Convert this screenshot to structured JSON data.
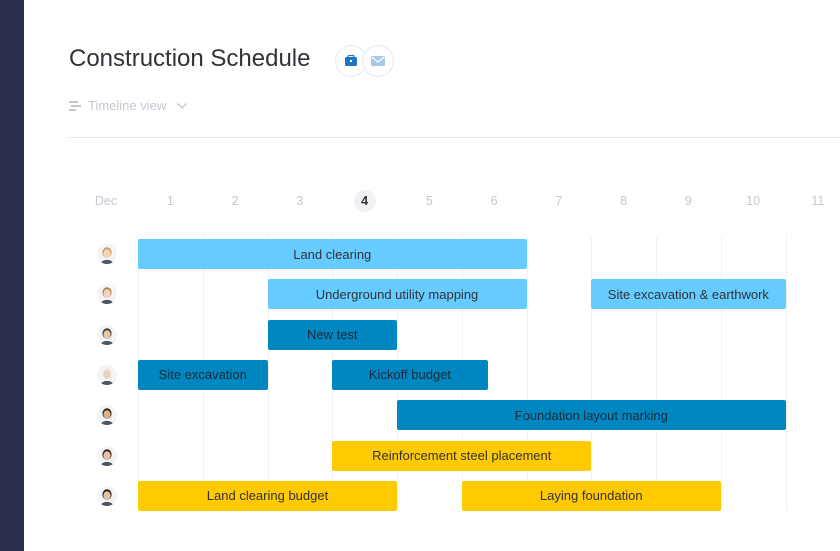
{
  "header": {
    "title": "Construction Schedule",
    "board_icon": "board-icon",
    "mail_icon": "mail-icon"
  },
  "view": {
    "label": "Timeline view",
    "icon": "timeline-icon",
    "chevron": "chevron-down-icon"
  },
  "timeline": {
    "month": "Dec",
    "today": "4",
    "days": [
      "1",
      "2",
      "3",
      "4",
      "5",
      "6",
      "7",
      "8",
      "9",
      "10",
      "11"
    ]
  },
  "rows": [
    {
      "avatar": "avatar-1",
      "bars": [
        {
          "label": "Land clearing",
          "start": 1,
          "end": 7,
          "color": "light"
        }
      ]
    },
    {
      "avatar": "avatar-2",
      "bars": [
        {
          "label": "Underground utility mapping",
          "start": 3,
          "end": 7,
          "color": "light"
        },
        {
          "label": "Site excavation & earthwork",
          "start": 8,
          "end": 11,
          "color": "light"
        }
      ]
    },
    {
      "avatar": "avatar-3",
      "bars": [
        {
          "label": "New test",
          "start": 3,
          "end": 5,
          "color": "dark"
        }
      ]
    },
    {
      "avatar": "avatar-4",
      "bars": [
        {
          "label": "Site excavation",
          "start": 1,
          "end": 3,
          "color": "dark"
        },
        {
          "label": "Kickoff budget",
          "start": 4,
          "end": 6.4,
          "color": "dark"
        }
      ]
    },
    {
      "avatar": "avatar-5",
      "bars": [
        {
          "label": "Foundation layout marking",
          "start": 5,
          "end": 11,
          "color": "dark"
        }
      ]
    },
    {
      "avatar": "avatar-6",
      "bars": [
        {
          "label": "Reinforcement steel placement",
          "start": 4,
          "end": 8,
          "color": "yellow"
        }
      ]
    },
    {
      "avatar": "avatar-7",
      "bars": [
        {
          "label": "Land clearing budget",
          "start": 1,
          "end": 5,
          "color": "yellow"
        },
        {
          "label": "Laying foundation",
          "start": 6,
          "end": 10,
          "color": "yellow"
        }
      ]
    }
  ],
  "colors": {
    "light": "#66ccff",
    "dark": "#0086c0",
    "yellow": "#ffcb00",
    "rail": "#292f4c"
  }
}
